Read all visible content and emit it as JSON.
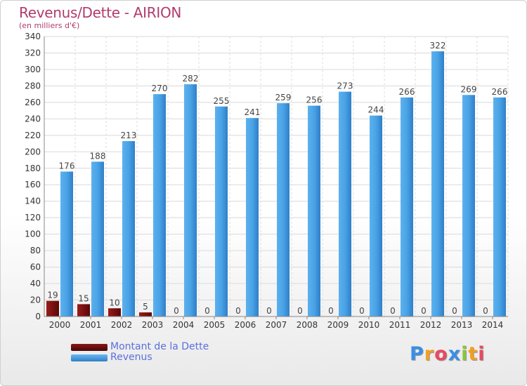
{
  "header": {
    "title": "Revenus/Dette - AIRION",
    "subtitle": "(en milliers d'€)"
  },
  "chart_data": {
    "type": "bar",
    "categories": [
      "2000",
      "2001",
      "2002",
      "2003",
      "2004",
      "2005",
      "2006",
      "2007",
      "2008",
      "2009",
      "2010",
      "2011",
      "2012",
      "2013",
      "2014"
    ],
    "series": [
      {
        "name": "Montant de la Dette",
        "color": "#7a1010",
        "values": [
          19,
          15,
          10,
          5,
          0,
          0,
          0,
          0,
          0,
          0,
          0,
          0,
          0,
          0,
          0
        ]
      },
      {
        "name": "Revenus",
        "color": "#4a9fe0",
        "values": [
          176,
          188,
          213,
          270,
          282,
          255,
          241,
          259,
          256,
          273,
          244,
          266,
          322,
          269,
          266
        ]
      }
    ],
    "yticks": [
      0,
      20,
      40,
      60,
      80,
      100,
      120,
      140,
      160,
      180,
      200,
      220,
      240,
      260,
      280,
      300,
      320,
      340
    ],
    "ylim": [
      0,
      340
    ],
    "grid": true,
    "legend_position": "bottom-left"
  },
  "legend": {
    "items": [
      {
        "label": "Montant de la Dette",
        "color": "#6e0c0c"
      },
      {
        "label": "Revenus",
        "color": "#4a9fe0"
      }
    ]
  },
  "logo": {
    "letters": [
      {
        "ch": "P",
        "color": "#3a8ee6"
      },
      {
        "ch": "r",
        "color": "#f0a020"
      },
      {
        "ch": "o",
        "color": "#e84a5f"
      },
      {
        "ch": "x",
        "color": "#3a8ee6"
      },
      {
        "ch": "i",
        "color": "#8ac440"
      },
      {
        "ch": "t",
        "color": "#f0a020"
      },
      {
        "ch": "i",
        "color": "#e84a5f"
      }
    ]
  }
}
